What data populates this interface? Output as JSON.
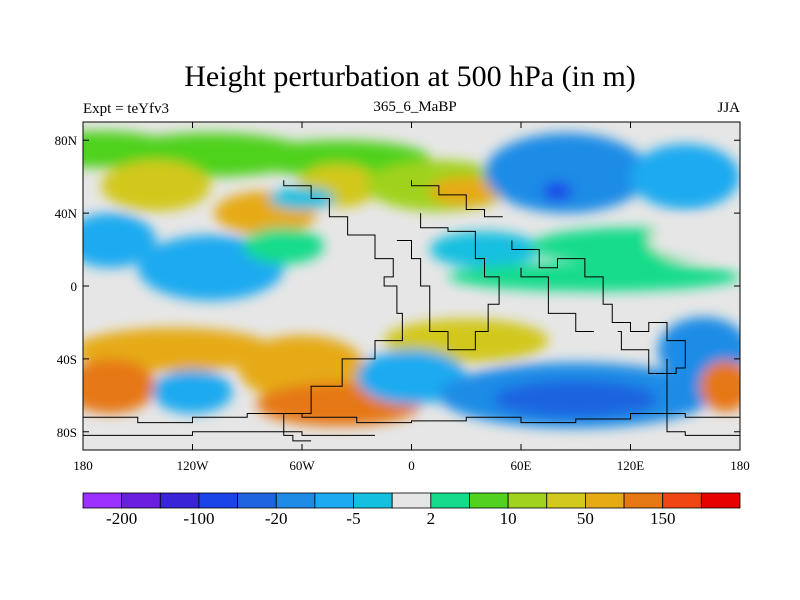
{
  "title": "Height perturbation at 500 hPa (in m)",
  "subtitle_left": "Expt = teYfv3",
  "subtitle_center": "365_6_MaBP",
  "subtitle_right": "JJA",
  "colors": {
    "purple_light": "#9b30ff",
    "purple": "#6a1ee0",
    "indigo": "#3a24d8",
    "blue_dark": "#1a44e8",
    "blue": "#1e64e0",
    "blue_mid": "#1e8ce6",
    "sky": "#1eaaf0",
    "cyan": "#14c0e0",
    "neutral": "#e6e6e6",
    "teal_green": "#14dc8c",
    "green": "#50d21e",
    "yellow_green": "#a0d21e",
    "olive_yellow": "#d2c81e",
    "orange_yellow": "#e6aa14",
    "orange": "#e67814",
    "red_orange": "#f04614",
    "red": "#e60000"
  },
  "chart_data": {
    "type": "heatmap",
    "title": "Height perturbation at 500 hPa (in m)",
    "xlim": [
      -180,
      180
    ],
    "ylim": [
      -90,
      90
    ],
    "x_ticks": [
      -180,
      -120,
      -60,
      0,
      60,
      120,
      180
    ],
    "x_tick_labels": [
      "180",
      "120W",
      "60W",
      "0",
      "60E",
      "120E",
      "180"
    ],
    "y_ticks": [
      80,
      40,
      0,
      -40,
      -80
    ],
    "y_tick_labels": [
      "80N",
      "40N",
      "0",
      "40S",
      "80S"
    ],
    "colorbar": {
      "labels": [
        "-200",
        "-100",
        "-20",
        "-5",
        "2",
        "10",
        "50",
        "150"
      ],
      "colors": [
        "#9b30ff",
        "#6a1ee0",
        "#3a24d8",
        "#1a44e8",
        "#1e64e0",
        "#1e8ce6",
        "#1eaaf0",
        "#14c0e0",
        "#e6e6e6",
        "#14dc8c",
        "#50d21e",
        "#a0d21e",
        "#d2c81e",
        "#e6aa14",
        "#e67814",
        "#f04614",
        "#e60000"
      ]
    },
    "anomalies": [
      {
        "lon": -170,
        "lat": 75,
        "rx": 40,
        "ry": 10,
        "level": 10
      },
      {
        "lon": -110,
        "lat": 72,
        "rx": 55,
        "ry": 12,
        "level": 10
      },
      {
        "lon": -40,
        "lat": 70,
        "rx": 50,
        "ry": 10,
        "level": 10
      },
      {
        "lon": -140,
        "lat": 55,
        "rx": 30,
        "ry": 14,
        "level": 12
      },
      {
        "lon": -80,
        "lat": 40,
        "rx": 28,
        "ry": 12,
        "level": 13
      },
      {
        "lon": -40,
        "lat": 55,
        "rx": 22,
        "ry": 12,
        "level": 12
      },
      {
        "lon": 15,
        "lat": 55,
        "rx": 40,
        "ry": 14,
        "level": 11
      },
      {
        "lon": 30,
        "lat": 52,
        "rx": 20,
        "ry": 8,
        "level": 13
      },
      {
        "lon": -60,
        "lat": 48,
        "rx": 18,
        "ry": 6,
        "level": 7
      },
      {
        "lon": 85,
        "lat": 62,
        "rx": 45,
        "ry": 22,
        "level": 5
      },
      {
        "lon": 80,
        "lat": 52,
        "rx": 8,
        "ry": 5,
        "level": 3
      },
      {
        "lon": 150,
        "lat": 60,
        "rx": 30,
        "ry": 18,
        "level": 6
      },
      {
        "lon": -165,
        "lat": 25,
        "rx": 25,
        "ry": 15,
        "level": 6
      },
      {
        "lon": -110,
        "lat": 10,
        "rx": 40,
        "ry": 18,
        "level": 6
      },
      {
        "lon": -70,
        "lat": 22,
        "rx": 22,
        "ry": 10,
        "level": 9
      },
      {
        "lon": 40,
        "lat": 20,
        "rx": 30,
        "ry": 10,
        "level": 7
      },
      {
        "lon": 120,
        "lat": 22,
        "rx": 55,
        "ry": 10,
        "level": 9
      },
      {
        "lon": 100,
        "lat": 5,
        "rx": 80,
        "ry": 8,
        "level": 9
      },
      {
        "lon": -130,
        "lat": -35,
        "rx": 55,
        "ry": 12,
        "level": 13
      },
      {
        "lon": -60,
        "lat": -45,
        "rx": 35,
        "ry": 18,
        "level": 13
      },
      {
        "lon": -165,
        "lat": -55,
        "rx": 25,
        "ry": 15,
        "level": 14
      },
      {
        "lon": -40,
        "lat": -65,
        "rx": 45,
        "ry": 12,
        "level": 14
      },
      {
        "lon": 30,
        "lat": -30,
        "rx": 45,
        "ry": 12,
        "level": 12
      },
      {
        "lon": -120,
        "lat": -58,
        "rx": 22,
        "ry": 12,
        "level": 6
      },
      {
        "lon": 0,
        "lat": -50,
        "rx": 30,
        "ry": 15,
        "level": 6
      },
      {
        "lon": 90,
        "lat": -60,
        "rx": 75,
        "ry": 18,
        "level": 5
      },
      {
        "lon": 90,
        "lat": -62,
        "rx": 45,
        "ry": 10,
        "level": 4
      },
      {
        "lon": 160,
        "lat": -35,
        "rx": 25,
        "ry": 18,
        "level": 5
      },
      {
        "lon": 172,
        "lat": -55,
        "rx": 14,
        "ry": 14,
        "level": 14
      },
      {
        "lon": 155,
        "lat": 25,
        "rx": 25,
        "ry": 10,
        "level": 8
      }
    ],
    "coastlines": [
      [
        [
          -70,
          58
        ],
        [
          -55,
          55
        ],
        [
          -45,
          48
        ],
        [
          -35,
          38
        ],
        [
          -20,
          28
        ],
        [
          -10,
          15
        ],
        [
          -15,
          5
        ],
        [
          -8,
          0
        ],
        [
          -5,
          -15
        ],
        [
          -20,
          -30
        ],
        [
          -38,
          -40
        ],
        [
          -55,
          -55
        ],
        [
          -70,
          -70
        ],
        [
          -65,
          -82
        ],
        [
          -55,
          -85
        ]
      ],
      [
        [
          0,
          58
        ],
        [
          15,
          55
        ],
        [
          30,
          50
        ],
        [
          40,
          42
        ],
        [
          50,
          38
        ]
      ],
      [
        [
          5,
          40
        ],
        [
          20,
          32
        ],
        [
          35,
          30
        ],
        [
          40,
          15
        ],
        [
          48,
          5
        ],
        [
          42,
          -10
        ],
        [
          35,
          -25
        ],
        [
          20,
          -35
        ],
        [
          10,
          -25
        ],
        [
          5,
          0
        ],
        [
          0,
          15
        ],
        [
          -8,
          25
        ]
      ],
      [
        [
          55,
          25
        ],
        [
          70,
          20
        ],
        [
          80,
          10
        ],
        [
          95,
          15
        ],
        [
          105,
          5
        ],
        [
          110,
          -10
        ],
        [
          120,
          -20
        ],
        [
          130,
          -25
        ],
        [
          140,
          -20
        ],
        [
          150,
          -30
        ],
        [
          145,
          -45
        ],
        [
          130,
          -48
        ],
        [
          115,
          -35
        ],
        [
          113,
          -25
        ]
      ],
      [
        [
          60,
          10
        ],
        [
          75,
          5
        ],
        [
          90,
          -15
        ],
        [
          100,
          -25
        ]
      ],
      [
        [
          -180,
          -70
        ],
        [
          -150,
          -72
        ],
        [
          -120,
          -75
        ],
        [
          -90,
          -72
        ],
        [
          -60,
          -70
        ],
        [
          -30,
          -72
        ],
        [
          0,
          -75
        ],
        [
          30,
          -74
        ],
        [
          60,
          -72
        ],
        [
          90,
          -75
        ],
        [
          120,
          -73
        ],
        [
          150,
          -70
        ],
        [
          180,
          -72
        ]
      ],
      [
        [
          -180,
          -80
        ],
        [
          -120,
          -82
        ],
        [
          -60,
          -80
        ],
        [
          -20,
          -82
        ]
      ],
      [
        [
          140,
          -40
        ],
        [
          140,
          -60
        ],
        [
          150,
          -80
        ],
        [
          180,
          -82
        ]
      ]
    ]
  }
}
